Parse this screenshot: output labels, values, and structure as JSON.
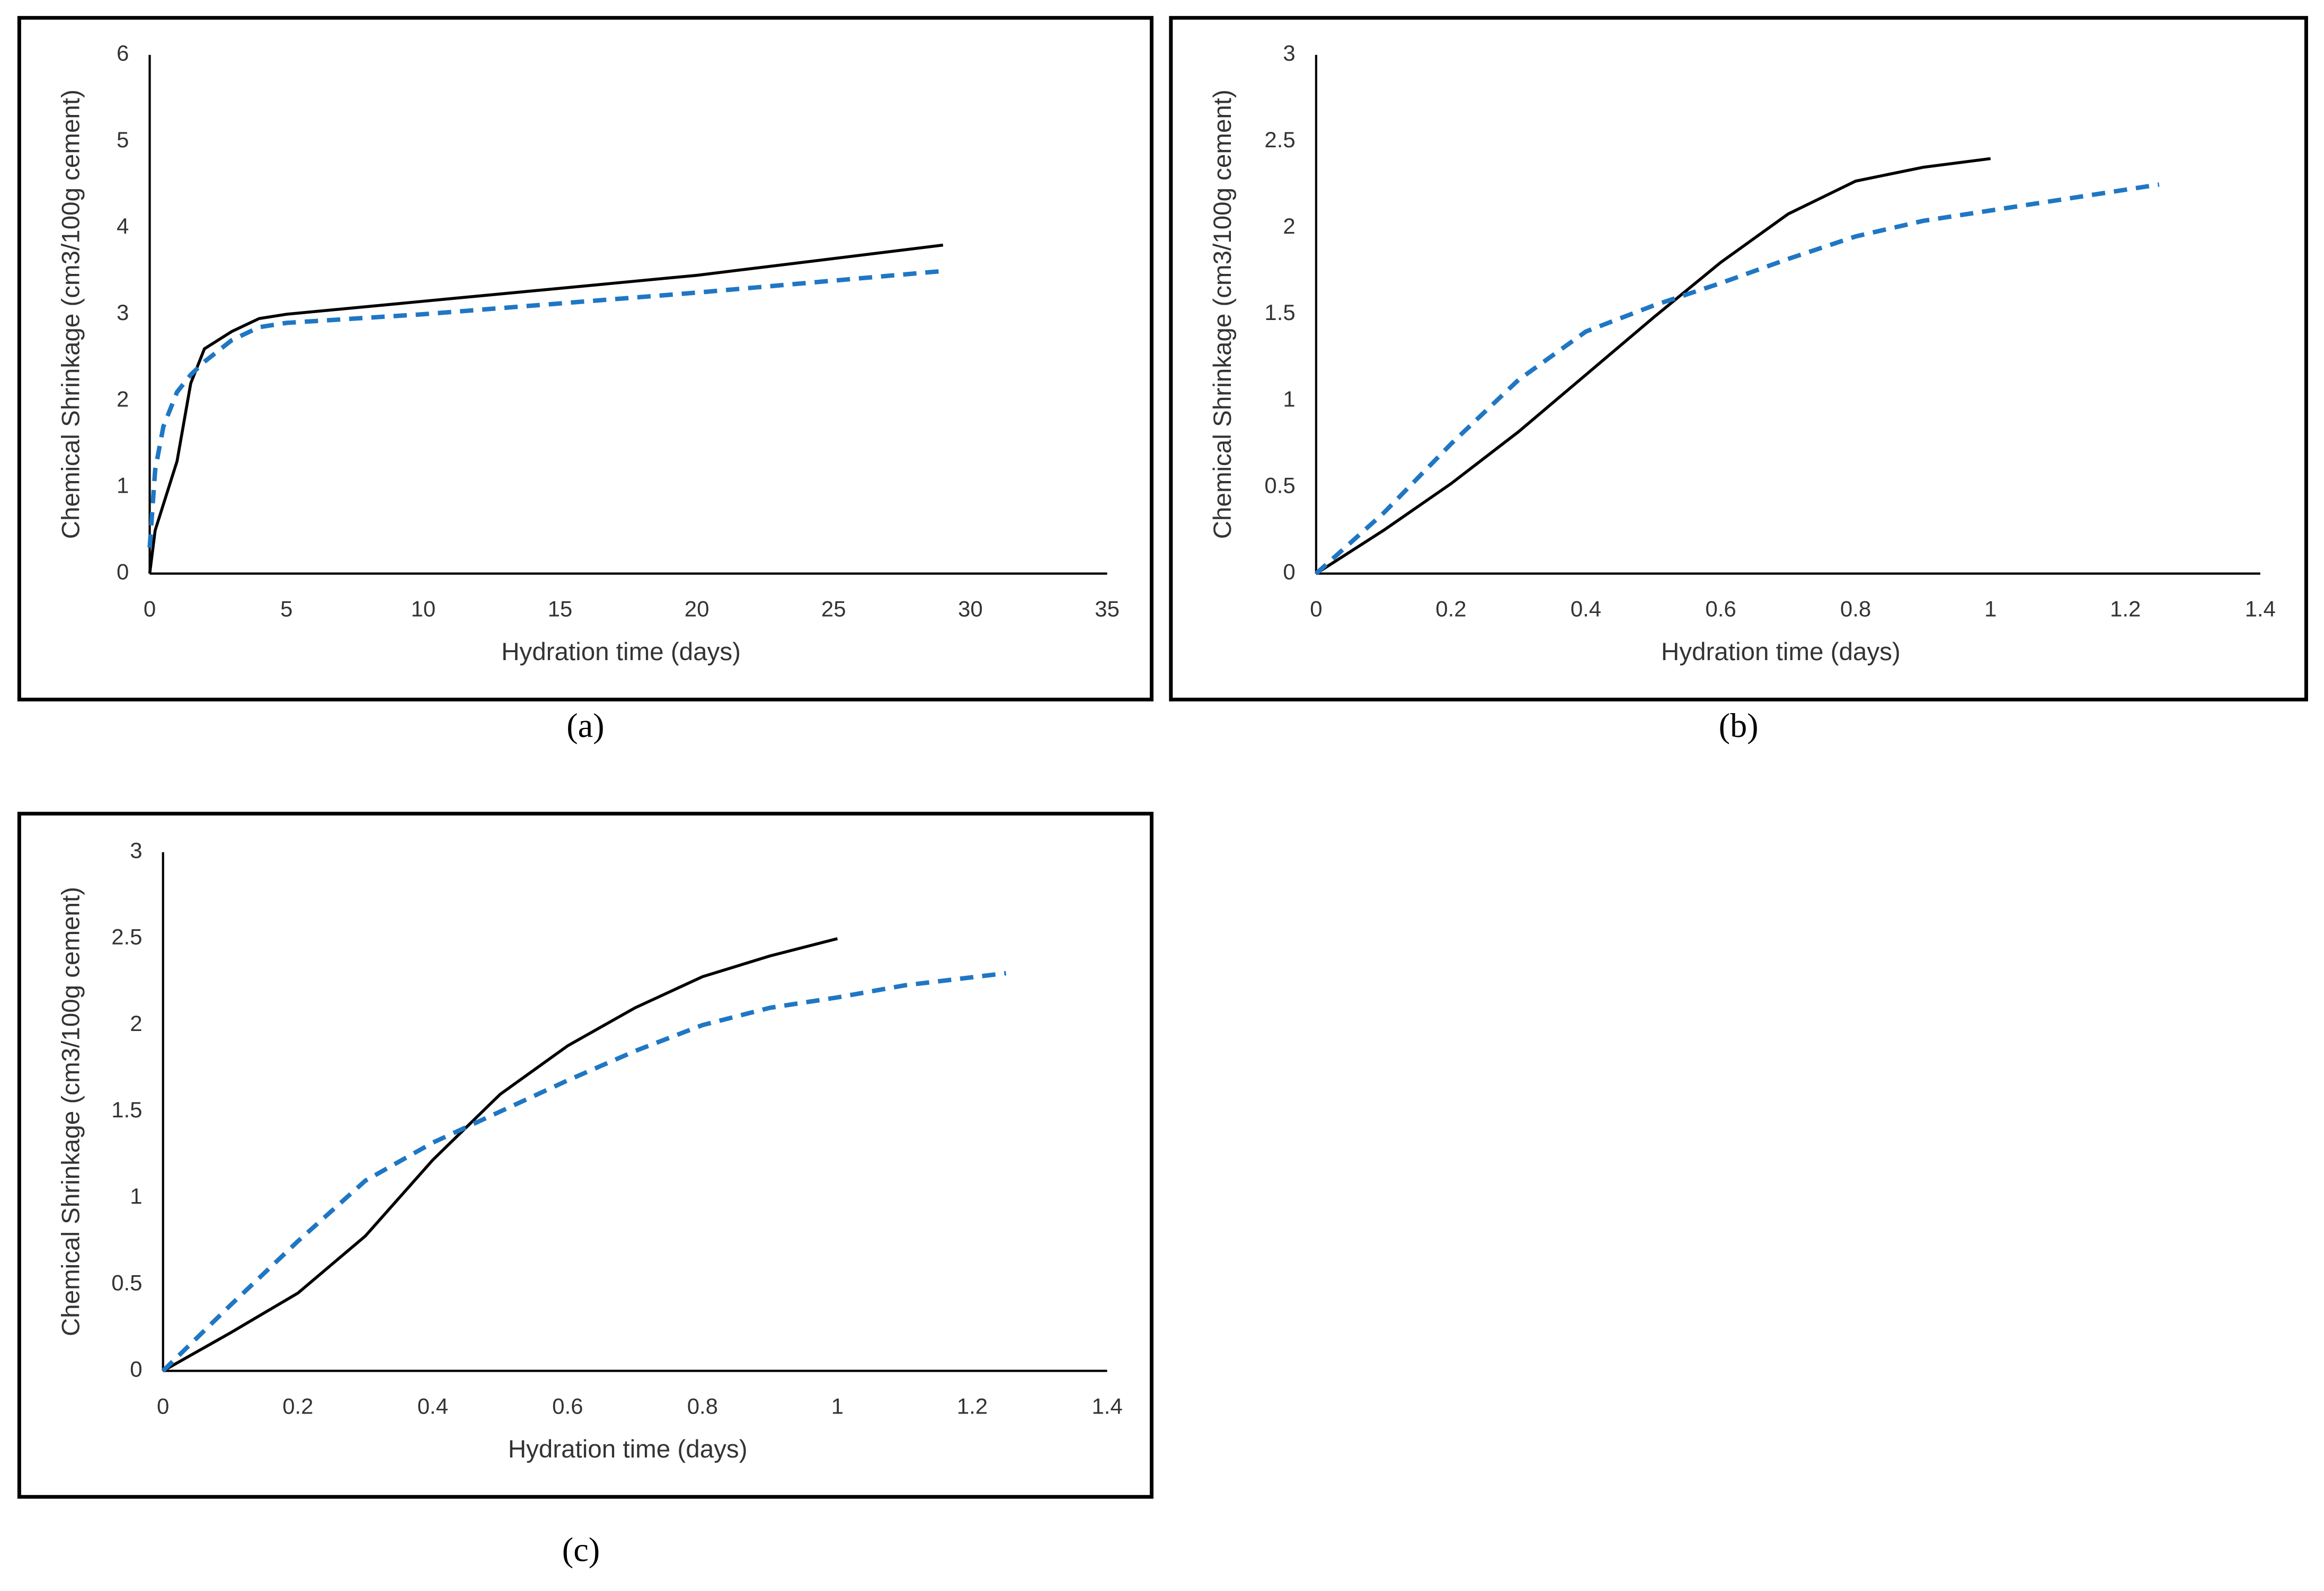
{
  "chart_data": [
    {
      "type": "line",
      "caption": "(a)",
      "xlabel": "Hydration time (days)",
      "ylabel": "Chemical Shrinkage (cm3/100g cement)",
      "xlim": [
        0,
        35
      ],
      "ylim": [
        0,
        6
      ],
      "xticks": [
        0,
        5,
        10,
        15,
        20,
        25,
        30,
        35
      ],
      "yticks": [
        0,
        1,
        2,
        3,
        4,
        5,
        6
      ],
      "series": [
        {
          "color": "#000000",
          "linestyle": "solid",
          "x": [
            0,
            0.2,
            0.5,
            1,
            1.5,
            2,
            3,
            4,
            5,
            10,
            20,
            29
          ],
          "values": [
            0,
            0.5,
            0.8,
            1.3,
            2.2,
            2.6,
            2.8,
            2.95,
            3.0,
            3.15,
            3.45,
            3.8
          ]
        },
        {
          "color": "#1f77c4",
          "linestyle": "dashed",
          "x": [
            0,
            0.2,
            0.5,
            1,
            1.5,
            2,
            3,
            4,
            5,
            10,
            20,
            29
          ],
          "values": [
            0.3,
            1.2,
            1.7,
            2.1,
            2.3,
            2.45,
            2.7,
            2.85,
            2.9,
            3.0,
            3.25,
            3.5
          ]
        }
      ]
    },
    {
      "type": "line",
      "caption": "(b)",
      "xlabel": "Hydration time (days)",
      "ylabel": "Chemical Shrinkage (cm3/100g cement)",
      "xlim": [
        0,
        1.4
      ],
      "ylim": [
        0,
        3
      ],
      "xticks": [
        0,
        0.2,
        0.4,
        0.6,
        0.8,
        1,
        1.2,
        1.4
      ],
      "yticks": [
        0,
        0.5,
        1,
        1.5,
        2,
        2.5,
        3
      ],
      "series": [
        {
          "color": "#000000",
          "linestyle": "solid",
          "x": [
            0,
            0.1,
            0.2,
            0.3,
            0.4,
            0.5,
            0.6,
            0.7,
            0.8,
            0.9,
            1
          ],
          "values": [
            0,
            0.25,
            0.52,
            0.82,
            1.15,
            1.48,
            1.8,
            2.08,
            2.27,
            2.35,
            2.4
          ]
        },
        {
          "color": "#1f77c4",
          "linestyle": "dashed",
          "x": [
            0,
            0.1,
            0.2,
            0.3,
            0.4,
            0.5,
            0.6,
            0.7,
            0.8,
            0.9,
            1,
            1.1,
            1.25
          ],
          "values": [
            0,
            0.35,
            0.75,
            1.12,
            1.4,
            1.55,
            1.68,
            1.82,
            1.95,
            2.04,
            2.1,
            2.16,
            2.25
          ]
        }
      ]
    },
    {
      "type": "line",
      "caption": "(c)",
      "xlabel": "Hydration time (days)",
      "ylabel": "Chemical Shrinkage (cm3/100g cement)",
      "xlim": [
        0,
        1.4
      ],
      "ylim": [
        0,
        3
      ],
      "xticks": [
        0,
        0.2,
        0.4,
        0.6,
        0.8,
        1,
        1.2,
        1.4
      ],
      "yticks": [
        0,
        0.5,
        1,
        1.5,
        2,
        2.5,
        3
      ],
      "series": [
        {
          "color": "#000000",
          "linestyle": "solid",
          "x": [
            0,
            0.1,
            0.2,
            0.3,
            0.4,
            0.5,
            0.6,
            0.7,
            0.8,
            0.9,
            1
          ],
          "values": [
            0,
            0.22,
            0.45,
            0.78,
            1.22,
            1.6,
            1.88,
            2.1,
            2.28,
            2.4,
            2.5
          ]
        },
        {
          "color": "#1f77c4",
          "linestyle": "dashed",
          "x": [
            0,
            0.1,
            0.2,
            0.3,
            0.4,
            0.5,
            0.6,
            0.7,
            0.8,
            0.9,
            1,
            1.1,
            1.25
          ],
          "values": [
            0,
            0.38,
            0.75,
            1.1,
            1.32,
            1.5,
            1.68,
            1.85,
            2.0,
            2.1,
            2.16,
            2.23,
            2.3
          ]
        }
      ]
    }
  ]
}
